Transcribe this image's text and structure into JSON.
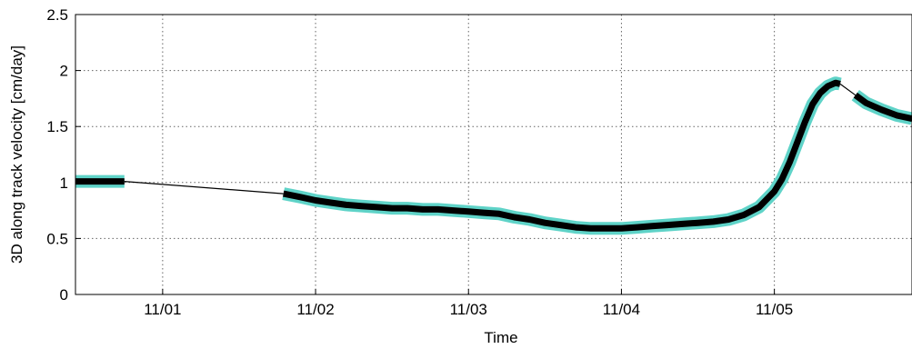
{
  "chart_data": {
    "type": "line",
    "title": "",
    "xlabel": "Time",
    "ylabel": "3D along track velocity [cm/day]",
    "x_tick_labels": [
      "11/01",
      "11/02",
      "11/03",
      "11/04",
      "11/05"
    ],
    "x_ticks": [
      1,
      2,
      3,
      4,
      5
    ],
    "xlim": [
      0.43,
      5.9
    ],
    "y_tick_labels": [
      "0",
      "0.5",
      "1",
      "1.5",
      "2",
      "2.5"
    ],
    "y_ticks": [
      0,
      0.5,
      1,
      1.5,
      2,
      2.5
    ],
    "ylim": [
      0,
      2.5
    ],
    "grid": true,
    "colors": {
      "main_line": "#000000",
      "uncertainty_band": "#5fd3c8",
      "connector": "#000000",
      "grid": "#666666"
    },
    "series": [
      {
        "role": "main-segments",
        "segments": [
          {
            "x": [
              0.43,
              0.55,
              0.65,
              0.75
            ],
            "y": [
              1.01,
              1.01,
              1.01,
              1.01
            ]
          },
          {
            "x": [
              1.79,
              1.9,
              2.0,
              2.1,
              2.2,
              2.3,
              2.4,
              2.5,
              2.6,
              2.7,
              2.8,
              2.9,
              3.0,
              3.1,
              3.2,
              3.3,
              3.4,
              3.5,
              3.6,
              3.7,
              3.8,
              3.9,
              4.0,
              4.1,
              4.2,
              4.3,
              4.4,
              4.5,
              4.6,
              4.7,
              4.8,
              4.9,
              5.0,
              5.05,
              5.1,
              5.15,
              5.2,
              5.25,
              5.3,
              5.35,
              5.4,
              5.43
            ],
            "y": [
              0.9,
              0.87,
              0.84,
              0.82,
              0.8,
              0.79,
              0.78,
              0.77,
              0.77,
              0.76,
              0.76,
              0.75,
              0.74,
              0.73,
              0.72,
              0.69,
              0.67,
              0.64,
              0.62,
              0.6,
              0.59,
              0.59,
              0.59,
              0.6,
              0.61,
              0.62,
              0.63,
              0.64,
              0.65,
              0.67,
              0.71,
              0.78,
              0.92,
              1.03,
              1.18,
              1.36,
              1.54,
              1.7,
              1.8,
              1.86,
              1.89,
              1.88
            ]
          },
          {
            "x": [
              5.53,
              5.6,
              5.7,
              5.8,
              5.9
            ],
            "y": [
              1.78,
              1.71,
              1.65,
              1.6,
              1.57
            ]
          }
        ]
      },
      {
        "role": "connectors",
        "segments": [
          {
            "x": [
              0.75,
              1.79
            ],
            "y": [
              1.01,
              0.9
            ]
          },
          {
            "x": [
              5.43,
              5.53
            ],
            "y": [
              1.88,
              1.78
            ]
          }
        ]
      }
    ]
  }
}
